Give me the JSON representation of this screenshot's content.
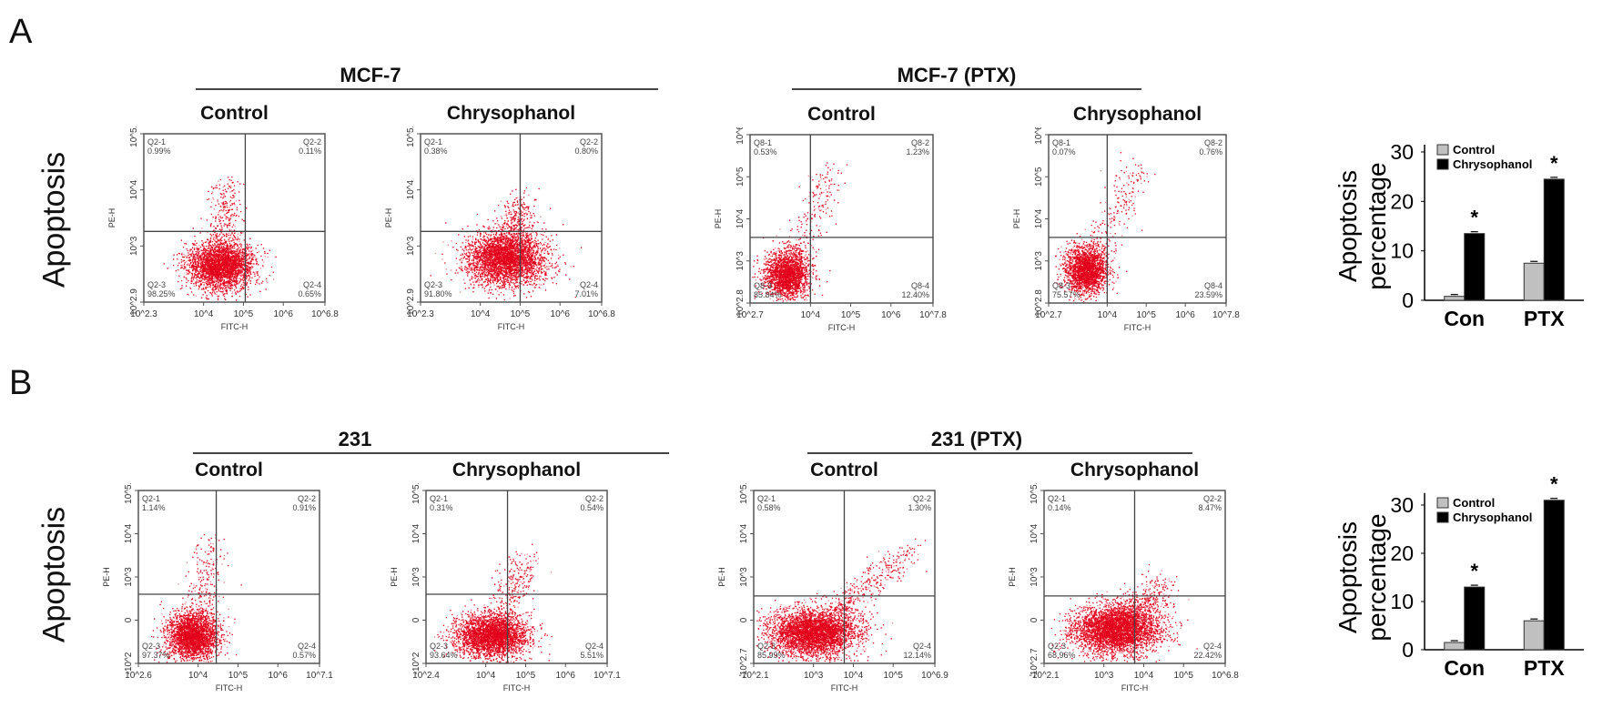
{
  "panels": [
    {
      "letter": "A",
      "row_label": "Apoptosis",
      "groups": [
        {
          "label": "MCF-7"
        },
        {
          "label": "MCF-7 (PTX)"
        }
      ],
      "plots": [
        {
          "title": "Control",
          "x_axis": "FITC-H",
          "y_axis": "PE-H",
          "x_ticks": [
            "10^2.3",
            "10^4",
            "10^5",
            "10^6",
            "10^6.8"
          ],
          "y_ticks": [
            "10^2.9",
            "10^3",
            "10^4",
            "10^5.8"
          ],
          "quadrants": [
            {
              "name": "Q2-1",
              "pct": "0.99%"
            },
            {
              "name": "Q2-2",
              "pct": "0.11%"
            },
            {
              "name": "Q2-3",
              "pct": "98.25%"
            },
            {
              "name": "Q2-4",
              "pct": "0.65%"
            }
          ]
        },
        {
          "title": "Chrysophanol",
          "x_axis": "FITC-H",
          "y_axis": "PE-H",
          "x_ticks": [
            "10^2.3",
            "10^4",
            "10^5",
            "10^6",
            "10^6.8"
          ],
          "y_ticks": [
            "10^2.9",
            "10^3",
            "10^4",
            "10^5.8"
          ],
          "quadrants": [
            {
              "name": "Q2-1",
              "pct": "0.38%"
            },
            {
              "name": "Q2-2",
              "pct": "0.80%"
            },
            {
              "name": "Q2-3",
              "pct": "91.80%"
            },
            {
              "name": "Q2-4",
              "pct": "7.01%"
            }
          ]
        },
        {
          "title": "Control",
          "x_axis": "FITC-H",
          "y_axis": "PE-H",
          "x_ticks": [
            "10^2.7",
            "10^4",
            "10^5",
            "10^6",
            "10^7.8"
          ],
          "y_ticks": [
            "10^2.8",
            "10^3",
            "10^4",
            "10^5",
            "10^6"
          ],
          "quadrants": [
            {
              "name": "Q8-1",
              "pct": "0.53%"
            },
            {
              "name": "Q8-2",
              "pct": "1.23%"
            },
            {
              "name": "Q8-3",
              "pct": "85.84%"
            },
            {
              "name": "Q8-4",
              "pct": "12.40%"
            }
          ]
        },
        {
          "title": "Chrysophanol",
          "x_axis": "FITC-H",
          "y_axis": "PE-H",
          "x_ticks": [
            "10^2.7",
            "10^4",
            "10^5",
            "10^6",
            "10^7.8"
          ],
          "y_ticks": [
            "10^2.8",
            "10^3",
            "10^4",
            "10^5",
            "10^6"
          ],
          "quadrants": [
            {
              "name": "Q8-1",
              "pct": "0.07%"
            },
            {
              "name": "Q8-2",
              "pct": "0.76%"
            },
            {
              "name": "Q8-3",
              "pct": "75.57%"
            },
            {
              "name": "Q8-4",
              "pct": "23.59%"
            }
          ]
        }
      ]
    },
    {
      "letter": "B",
      "row_label": "Apoptosis",
      "groups": [
        {
          "label": "231"
        },
        {
          "label": "231 (PTX)"
        }
      ],
      "plots": [
        {
          "title": "Control",
          "x_axis": "FITC-H",
          "y_axis": "PE-H",
          "x_ticks": [
            "10^2.6",
            "10^4",
            "10^5",
            "10^6",
            "10^7.1"
          ],
          "y_ticks": [
            "-10^2",
            "0",
            "10^3",
            "10^4",
            "10^5.8"
          ],
          "quadrants": [
            {
              "name": "Q2-1",
              "pct": "1.14%"
            },
            {
              "name": "Q2-2",
              "pct": "0.91%"
            },
            {
              "name": "Q2-3",
              "pct": "97.37%"
            },
            {
              "name": "Q2-4",
              "pct": "0.57%"
            }
          ]
        },
        {
          "title": "Chrysophanol",
          "x_axis": "FITC-H",
          "y_axis": "PE-H",
          "x_ticks": [
            "10^2.4",
            "10^4",
            "10^5",
            "10^6",
            "10^7.1"
          ],
          "y_ticks": [
            "-10^2",
            "0",
            "10^3",
            "10^4",
            "10^5.8"
          ],
          "quadrants": [
            {
              "name": "Q2-1",
              "pct": "0.31%"
            },
            {
              "name": "Q2-2",
              "pct": "0.54%"
            },
            {
              "name": "Q2-3",
              "pct": "93.64%"
            },
            {
              "name": "Q2-4",
              "pct": "5.51%"
            }
          ]
        },
        {
          "title": "Control",
          "x_axis": "FITC-H",
          "y_axis": "PE-H",
          "x_ticks": [
            "-10^2.1",
            "10^3",
            "10^4",
            "10^5",
            "10^6.9"
          ],
          "y_ticks": [
            "-10^2.7",
            "0",
            "10^3",
            "10^4",
            "10^5.4"
          ],
          "quadrants": [
            {
              "name": "Q2-1",
              "pct": "0.58%"
            },
            {
              "name": "Q2-2",
              "pct": "1.30%"
            },
            {
              "name": "Q2-3",
              "pct": "85.99%"
            },
            {
              "name": "Q2-4",
              "pct": "12.14%"
            }
          ]
        },
        {
          "title": "Chrysophanol",
          "x_axis": "FITC-H",
          "y_axis": "PE-H",
          "x_ticks": [
            "-10^2.1",
            "10^3",
            "10^4",
            "10^5",
            "10^6.8"
          ],
          "y_ticks": [
            "-10^2.7",
            "0",
            "10^3",
            "10^4",
            "10^5.4"
          ],
          "quadrants": [
            {
              "name": "Q2-1",
              "pct": "0.14%"
            },
            {
              "name": "Q2-2",
              "pct": "8.47%"
            },
            {
              "name": "Q2-3",
              "pct": "68.96%"
            },
            {
              "name": "Q2-4",
              "pct": "22.42%"
            }
          ]
        }
      ]
    }
  ],
  "colors": {
    "scatter": "#e3001b",
    "control_bar": "#c0c0c0",
    "chrysophanol_bar": "#000000"
  },
  "chart_data": [
    {
      "type": "bar",
      "ylabel": "Apoptosis percentage",
      "categories": [
        "Con",
        "PTX"
      ],
      "yticks": [
        0,
        10,
        20,
        30
      ],
      "ylim": [
        0,
        30
      ],
      "legend": "top",
      "series": [
        {
          "name": "Control",
          "values": [
            0.8,
            7.5
          ]
        },
        {
          "name": "Chrysophanol",
          "values": [
            13.5,
            24.5
          ]
        }
      ],
      "significance": [
        "*",
        "*"
      ]
    },
    {
      "type": "bar",
      "ylabel": "Apoptosis percentage",
      "categories": [
        "Con",
        "PTX"
      ],
      "yticks": [
        0,
        10,
        20,
        30
      ],
      "ylim": [
        0,
        31
      ],
      "legend": "top",
      "series": [
        {
          "name": "Control",
          "values": [
            1.5,
            6.0
          ]
        },
        {
          "name": "Chrysophanol",
          "values": [
            13.0,
            31.0
          ]
        }
      ],
      "significance": [
        "*",
        "*"
      ]
    }
  ]
}
